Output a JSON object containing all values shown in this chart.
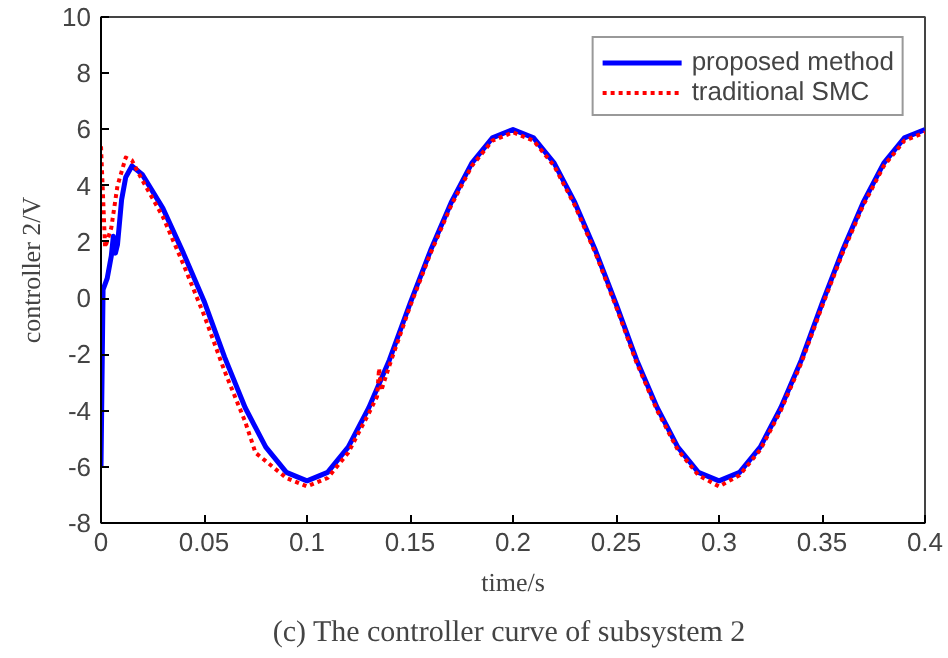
{
  "chart_data": {
    "type": "line",
    "xlabel": "time/s",
    "ylabel": "controller 2/V",
    "xlim": [
      0,
      0.4
    ],
    "ylim": [
      -8,
      10
    ],
    "xticks": [
      0,
      0.05,
      0.1,
      0.15,
      0.2,
      0.25,
      0.3,
      0.35,
      0.4
    ],
    "yticks": [
      -8,
      -6,
      -4,
      -2,
      0,
      2,
      4,
      6,
      8,
      10
    ],
    "grid": false,
    "legend": "top right",
    "annotations": [
      "(c)  The controller curve of subsystem 2"
    ],
    "series": [
      {
        "name": "proposed method",
        "color": "#0000ff",
        "line_style": "solid",
        "x": [
          0,
          0.001,
          0.003,
          0.005,
          0.006,
          0.007,
          0.008,
          0.01,
          0.012,
          0.015,
          0.02,
          0.03,
          0.04,
          0.05,
          0.06,
          0.07,
          0.08,
          0.09,
          0.1,
          0.11,
          0.12,
          0.13,
          0.14,
          0.15,
          0.16,
          0.17,
          0.18,
          0.19,
          0.2,
          0.21,
          0.22,
          0.23,
          0.24,
          0.25,
          0.26,
          0.27,
          0.28,
          0.29,
          0.3,
          0.31,
          0.32,
          0.33,
          0.34,
          0.35,
          0.36,
          0.37,
          0.38,
          0.39,
          0.4
        ],
        "values": [
          -6,
          0.3,
          0.7,
          1.5,
          2.2,
          1.6,
          1.9,
          3.5,
          4.3,
          4.7,
          4.4,
          3.2,
          1.6,
          -0.1,
          -2.1,
          -3.9,
          -5.3,
          -6.2,
          -6.5,
          -6.2,
          -5.3,
          -3.9,
          -2.2,
          -0.2,
          1.7,
          3.4,
          4.8,
          5.7,
          6.0,
          5.7,
          4.8,
          3.4,
          1.7,
          -0.2,
          -2.2,
          -3.9,
          -5.3,
          -6.2,
          -6.5,
          -6.2,
          -5.3,
          -3.9,
          -2.2,
          -0.2,
          1.7,
          3.4,
          4.8,
          5.7,
          6.0
        ]
      },
      {
        "name": "traditional SMC",
        "color": "#ff0000",
        "line_style": "dotted",
        "x": [
          0,
          0.002,
          0.005,
          0.008,
          0.012,
          0.015,
          0.02,
          0.03,
          0.04,
          0.05,
          0.06,
          0.07,
          0.075,
          0.08,
          0.09,
          0.1,
          0.11,
          0.12,
          0.13,
          0.134,
          0.135,
          0.136,
          0.14,
          0.15,
          0.16,
          0.17,
          0.18,
          0.19,
          0.2,
          0.21,
          0.22,
          0.23,
          0.24,
          0.25,
          0.26,
          0.27,
          0.28,
          0.29,
          0.3,
          0.31,
          0.32,
          0.33,
          0.34,
          0.35,
          0.36,
          0.37,
          0.38,
          0.39,
          0.4
        ],
        "values": [
          5.4,
          1.8,
          2.5,
          4.0,
          5.0,
          4.9,
          4.2,
          2.9,
          1.2,
          -0.6,
          -2.6,
          -4.4,
          -5.5,
          -5.8,
          -6.4,
          -6.7,
          -6.4,
          -5.5,
          -4.1,
          -3.5,
          -2.5,
          -3.3,
          -2.4,
          -0.3,
          1.6,
          3.3,
          4.7,
          5.6,
          5.9,
          5.6,
          4.7,
          3.3,
          1.6,
          -0.3,
          -2.3,
          -4.0,
          -5.4,
          -6.3,
          -6.7,
          -6.3,
          -5.4,
          -4.0,
          -2.3,
          -0.3,
          1.6,
          3.3,
          4.7,
          5.6,
          5.9
        ]
      }
    ]
  }
}
